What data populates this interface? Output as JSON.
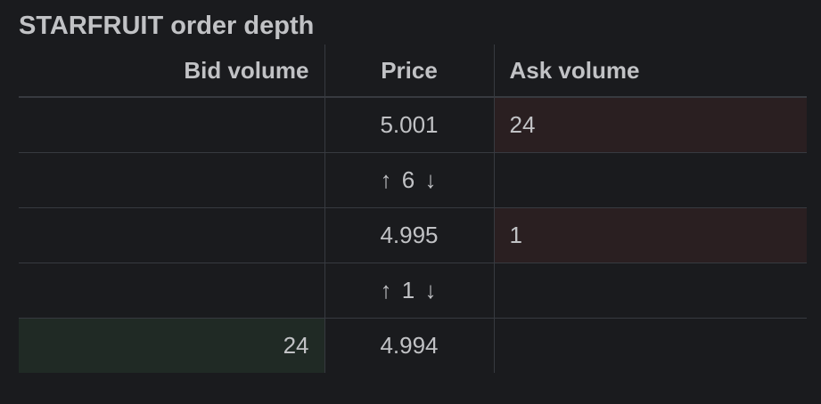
{
  "panel": {
    "title": "STARFRUIT order depth"
  },
  "table": {
    "headers": {
      "bid": "Bid volume",
      "price": "Price",
      "ask": "Ask volume"
    },
    "rows": [
      {
        "bid": "",
        "price": "5.001",
        "ask": "24"
      },
      {
        "bid": "",
        "price": "↑ 6 ↓",
        "ask": ""
      },
      {
        "bid": "",
        "price": "4.995",
        "ask": "1"
      },
      {
        "bid": "",
        "price": "↑ 1 ↓",
        "ask": ""
      },
      {
        "bid": "24",
        "price": "4.994",
        "ask": ""
      }
    ]
  },
  "colors": {
    "background": "#1a1b1e",
    "ask_fill": "#2a1f21",
    "bid_fill": "#202a25",
    "grid": "#373a40"
  }
}
